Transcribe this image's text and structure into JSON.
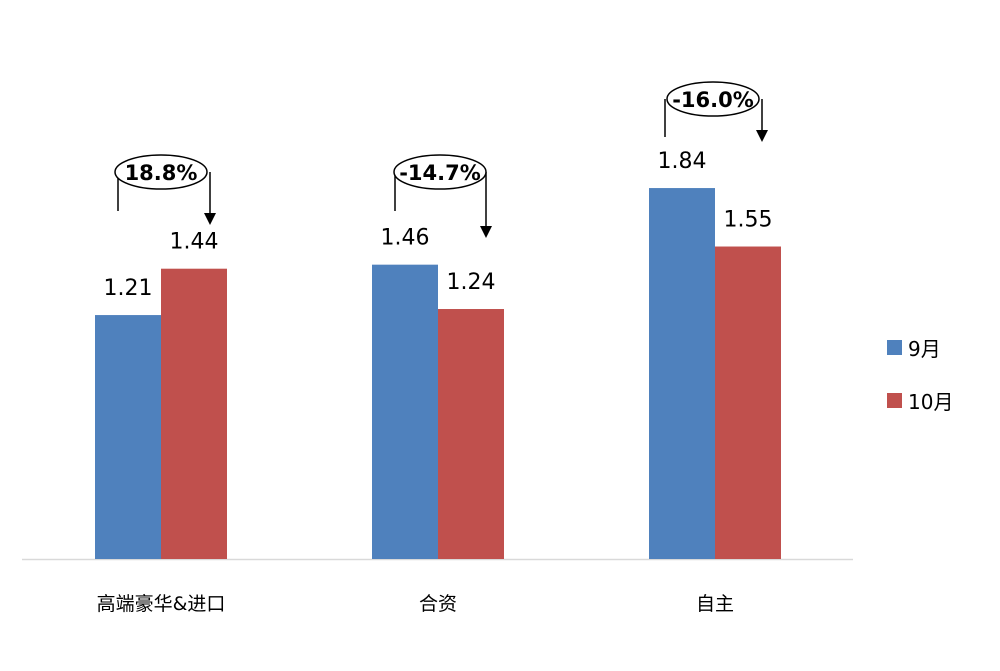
{
  "chart_data": {
    "type": "bar",
    "categories": [
      "高端豪华&进口",
      "合资",
      "自主"
    ],
    "series": [
      {
        "name": "9月",
        "values": [
          1.21,
          1.46,
          1.84
        ],
        "color": "#4F81BD"
      },
      {
        "name": "10月",
        "values": [
          1.44,
          1.24,
          1.55
        ],
        "color": "#C0504D"
      }
    ],
    "annotations": [
      "18.8%",
      "-14.7%",
      "-16.0%"
    ],
    "ylim": [
      0,
      2.5
    ],
    "grid": false,
    "legend": "right"
  }
}
